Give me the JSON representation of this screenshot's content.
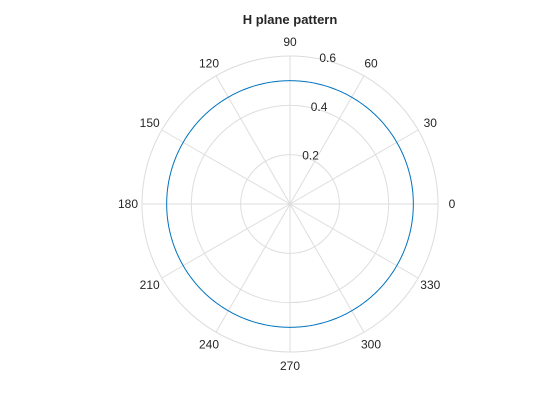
{
  "chart_data": {
    "type": "line",
    "projection": "polar",
    "title": "H plane pattern",
    "theta_unit": "degrees",
    "theta_direction": "counterclockwise",
    "theta_zero_location": "right",
    "theta_ticks": [
      0,
      30,
      60,
      90,
      120,
      150,
      180,
      210,
      240,
      270,
      300,
      330
    ],
    "theta_tick_labels": [
      "0",
      "30",
      "60",
      "90",
      "120",
      "150",
      "180",
      "210",
      "240",
      "270",
      "300",
      "330"
    ],
    "r_lim": [
      0,
      0.6
    ],
    "r_ticks": [
      0.2,
      0.4,
      0.6
    ],
    "r_tick_labels": [
      "0.2",
      "0.4",
      "0.6"
    ],
    "r_label_angle": 80,
    "grid": true,
    "series": [
      {
        "color": "#0072BD",
        "theta": [
          0,
          30,
          60,
          90,
          120,
          150,
          180,
          210,
          240,
          270,
          300,
          330,
          360
        ],
        "r": [
          0.5,
          0.5,
          0.5,
          0.5,
          0.5,
          0.5,
          0.5,
          0.5,
          0.5,
          0.5,
          0.5,
          0.5,
          0.5
        ]
      }
    ]
  }
}
